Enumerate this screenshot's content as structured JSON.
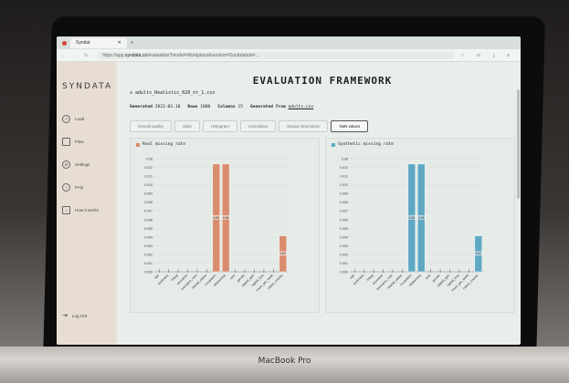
{
  "device": {
    "base_label": "MacBook Pro"
  },
  "browser": {
    "tab_title": "Syndat",
    "tab_close": "✕",
    "new_tab": "+",
    "url_prefix": "https://app.",
    "url_domain": "syndata.co",
    "url_rest": "/evaluation?model=Workplace&version=Doc&dataId=..."
  },
  "sidebar": {
    "logo": "SYNDATA",
    "items": [
      {
        "label": "Load",
        "icon": "load-icon"
      },
      {
        "label": "Files",
        "icon": "files-icon"
      },
      {
        "label": "Settings",
        "icon": "gear-icon"
      },
      {
        "label": "FAQ",
        "icon": "help-icon"
      },
      {
        "label": "How it works",
        "icon": "info-icon"
      }
    ],
    "logout": "Log Out"
  },
  "main": {
    "title": "EVALUATION FRAMEWORK",
    "file_name": "adults_Realistic_020_nr_1.csv",
    "generated_label": "Generated",
    "generated_value": "2023.03.10",
    "rows_label": "Rows",
    "rows_value": "1000",
    "columns_label": "Columns",
    "columns_value": "15",
    "generated_from_label": "Generated from",
    "generated_from_value": "adults.csv",
    "tabs": [
      "Overall quality",
      "Stats",
      "Histogram",
      "Correlation",
      "Mutual information",
      "NaN values"
    ],
    "active_tab": 5
  },
  "charts": {
    "real_title": "Real missing rate",
    "synthetic_title": "Synthetic missing rate",
    "real_color": "#d98c6e",
    "synthetic_color": "#5ea8c4"
  },
  "chart_data": [
    {
      "type": "bar",
      "title": "Real missing rate",
      "categories": [
        "age",
        "workclass",
        "fnlwgt",
        "education",
        "education_num",
        "marital_status",
        "occupation",
        "relationship",
        "race",
        "gender",
        "capital_gain",
        "capital_loss",
        "hours_per_week",
        "native_country"
      ],
      "values": [
        0,
        0,
        0,
        0,
        0,
        0,
        0.06,
        0.06,
        0,
        0,
        0,
        0,
        0,
        0.02
      ],
      "value_labels": [
        "",
        "",
        "",
        "",
        "",
        "",
        "0.06",
        "0.06",
        "",
        "",
        "",
        "",
        "",
        "0.02"
      ],
      "ytick_labels": [
        "0.000",
        "0.001",
        "0.002",
        "0.003",
        "0.004",
        "0.005",
        "0.006",
        "0.007",
        "0.008",
        "0.009",
        "0.010",
        "0.011",
        "0.012",
        "0.06"
      ]
    },
    {
      "type": "bar",
      "title": "Synthetic missing rate",
      "categories": [
        "age",
        "workclass",
        "fnlwgt",
        "education",
        "education_num",
        "marital_status",
        "occupation",
        "relationship",
        "race",
        "gender",
        "capital_gain",
        "capital_loss",
        "hours_per_week",
        "native_country"
      ],
      "values": [
        0,
        0,
        0,
        0,
        0,
        0,
        0.06,
        0.06,
        0,
        0,
        0,
        0,
        0,
        0.02
      ],
      "value_labels": [
        "",
        "",
        "",
        "",
        "",
        "",
        "0.06",
        "0.06",
        "",
        "",
        "",
        "",
        "",
        "0.02"
      ],
      "ytick_labels": [
        "0.000",
        "0.001",
        "0.002",
        "0.003",
        "0.004",
        "0.005",
        "0.006",
        "0.007",
        "0.008",
        "0.009",
        "0.010",
        "0.011",
        "0.012",
        "0.06"
      ]
    }
  ]
}
